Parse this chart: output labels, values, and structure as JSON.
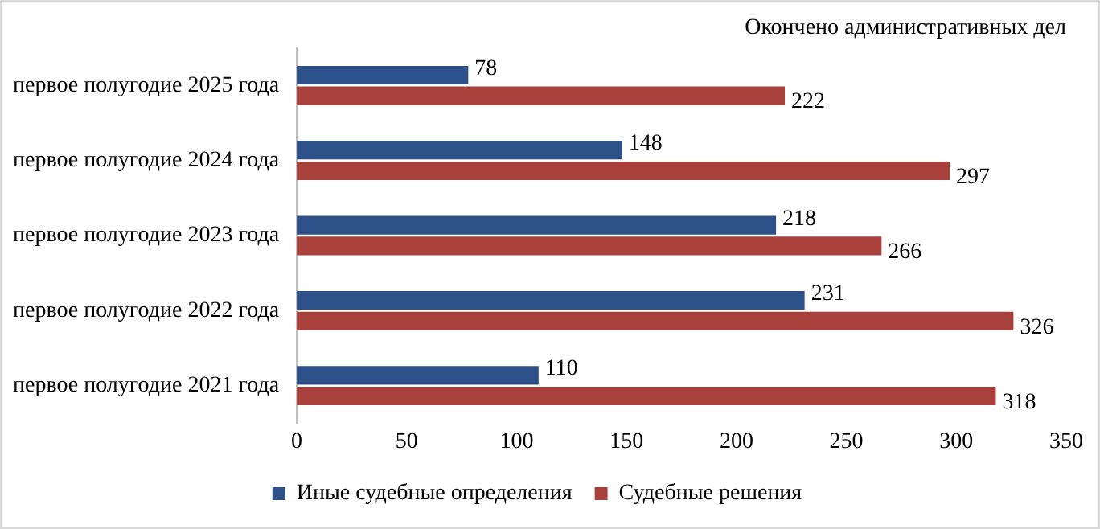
{
  "chart_data": {
    "type": "bar",
    "orientation": "horizontal",
    "title": "Окончено административных дел",
    "categories": [
      "первое полугодие 2025 года",
      "первое полугодие 2024 года",
      "первое полугодие 2023 года",
      "первое полугодие 2022 года",
      "первое полугодие 2021 года"
    ],
    "series": [
      {
        "name": "Иные судебные определения",
        "color": "#2f5189",
        "values": [
          78,
          148,
          218,
          231,
          110
        ]
      },
      {
        "name": "Судебные решения",
        "color": "#a8403c",
        "values": [
          222,
          297,
          266,
          326,
          318
        ]
      }
    ],
    "xlim": [
      0,
      350
    ],
    "xticks": [
      0,
      50,
      100,
      150,
      200,
      250,
      300,
      350
    ],
    "grid": false,
    "legend": "bottom",
    "data_labels": true
  }
}
